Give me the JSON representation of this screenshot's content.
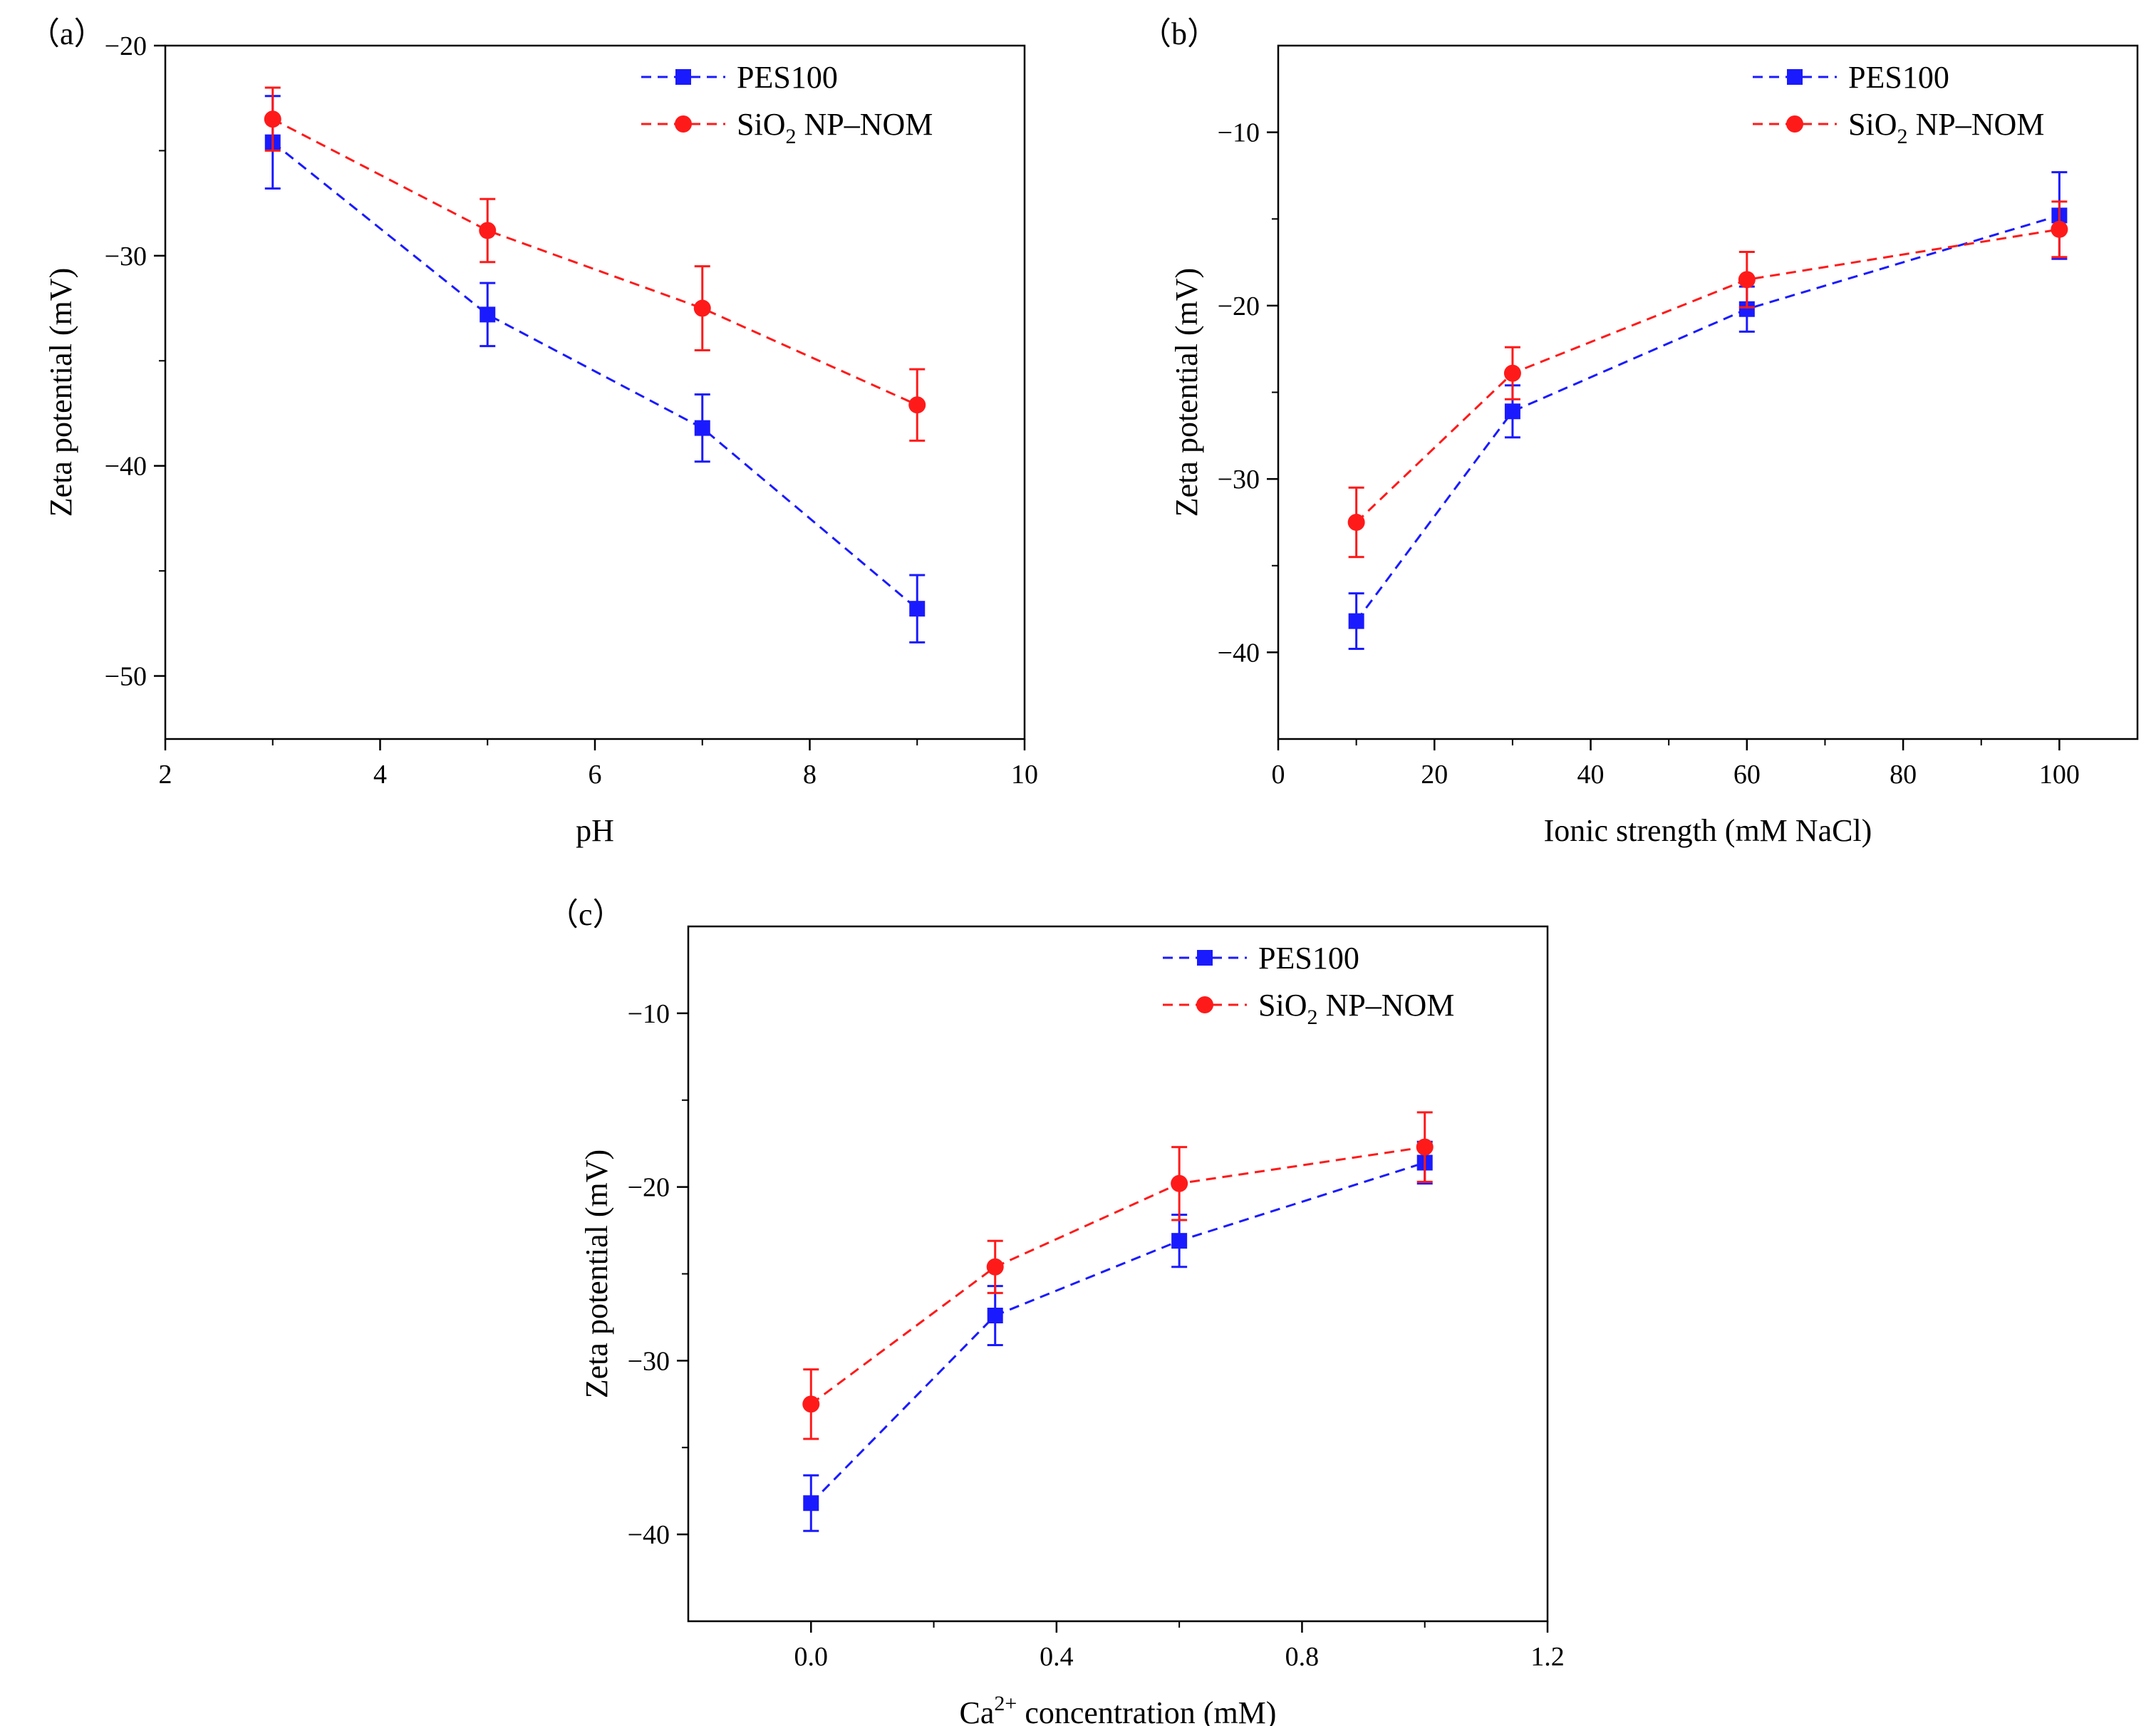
{
  "chart_data": [
    {
      "id": "a",
      "type": "line",
      "panel_label": "（a）",
      "xlabel": "pH",
      "ylabel": "Zeta potential (mV)",
      "xlim": [
        2,
        10
      ],
      "ylim": [
        -53,
        -20
      ],
      "xticks": [
        2,
        4,
        6,
        8,
        10
      ],
      "yticks": [
        -20,
        -30,
        -40,
        -50
      ],
      "xtick_labels": [
        "2",
        "4",
        "6",
        "8",
        "10"
      ],
      "ytick_labels": [
        "−20",
        "−30",
        "−40",
        "−50"
      ],
      "legend_position": "top-right",
      "series": [
        {
          "name": "PES100",
          "name_main": "PES100",
          "name_sub": "",
          "name_tail": "",
          "color": "#1a1aff",
          "marker": "square",
          "x": [
            3,
            5,
            7,
            9
          ],
          "y": [
            -24.6,
            -32.8,
            -38.2,
            -46.8
          ],
          "err": [
            2.2,
            1.5,
            1.6,
            1.6
          ]
        },
        {
          "name": "SiO2 NP–NOM",
          "name_main": "SiO",
          "name_sub": "2",
          "name_tail": " NP–NOM",
          "color": "#ff1a1a",
          "marker": "circle",
          "x": [
            3,
            5,
            7,
            9
          ],
          "y": [
            -23.5,
            -28.8,
            -32.5,
            -37.1
          ],
          "err": [
            1.5,
            1.5,
            2.0,
            1.7
          ]
        }
      ]
    },
    {
      "id": "b",
      "type": "line",
      "panel_label": "（b）",
      "xlabel": "Ionic strength (mM NaCl)",
      "ylabel": "Zeta potential (mV)",
      "xlim": [
        0,
        110
      ],
      "ylim": [
        -45,
        -5
      ],
      "xticks": [
        0,
        20,
        40,
        60,
        80,
        100
      ],
      "yticks": [
        -10,
        -20,
        -30,
        -40
      ],
      "xtick_labels": [
        "0",
        "20",
        "40",
        "60",
        "80",
        "100"
      ],
      "ytick_labels": [
        "−10",
        "−20",
        "−30",
        "−40"
      ],
      "legend_position": "top-right",
      "series": [
        {
          "name": "PES100",
          "name_main": "PES100",
          "name_sub": "",
          "name_tail": "",
          "color": "#1a1aff",
          "marker": "square",
          "x": [
            10,
            30,
            60,
            100
          ],
          "y": [
            -38.2,
            -26.1,
            -20.2,
            -14.8
          ],
          "err": [
            1.6,
            1.5,
            1.3,
            2.5
          ]
        },
        {
          "name": "SiO2 NP–NOM",
          "name_main": "SiO",
          "name_sub": "2",
          "name_tail": " NP–NOM",
          "color": "#ff1a1a",
          "marker": "circle",
          "x": [
            10,
            30,
            60,
            100
          ],
          "y": [
            -32.5,
            -23.9,
            -18.5,
            -15.6
          ],
          "err": [
            2.0,
            1.5,
            1.6,
            1.6
          ]
        }
      ]
    },
    {
      "id": "c",
      "type": "line",
      "panel_label": "（c）",
      "xlabel_main": "Ca",
      "xlabel_sup": "2+",
      "xlabel_tail": " concentration (mM)",
      "ylabel": "Zeta potential (mV)",
      "xlim": [
        -0.2,
        1.2
      ],
      "ylim": [
        -45,
        -5
      ],
      "xticks": [
        0.0,
        0.4,
        0.8,
        1.2
      ],
      "yticks": [
        -10,
        -20,
        -30,
        -40
      ],
      "xtick_labels": [
        "0.0",
        "0.4",
        "0.8",
        "1.2"
      ],
      "ytick_labels": [
        "−10",
        "−20",
        "−30",
        "−40"
      ],
      "legend_position": "top-right",
      "series": [
        {
          "name": "PES100",
          "name_main": "PES100",
          "name_sub": "",
          "name_tail": "",
          "color": "#1a1aff",
          "marker": "square",
          "x": [
            0.0,
            0.3,
            0.6,
            1.0
          ],
          "y": [
            -38.2,
            -27.4,
            -23.1,
            -18.6
          ],
          "err": [
            1.6,
            1.7,
            1.5,
            1.2
          ]
        },
        {
          "name": "SiO2 NP–NOM",
          "name_main": "SiO",
          "name_sub": "2",
          "name_tail": " NP–NOM",
          "color": "#ff1a1a",
          "marker": "circle",
          "x": [
            0.0,
            0.3,
            0.6,
            1.0
          ],
          "y": [
            -32.5,
            -24.6,
            -19.8,
            -17.7
          ],
          "err": [
            2.0,
            1.5,
            2.1,
            2.0
          ]
        }
      ]
    }
  ]
}
